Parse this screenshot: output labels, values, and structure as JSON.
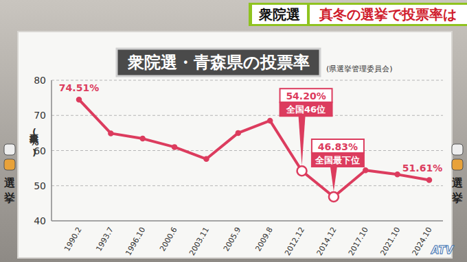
{
  "header": {
    "tag": "衆院選",
    "headline": "真冬の選挙で投票率は"
  },
  "side_labels": [
    "選",
    "挙"
  ],
  "logo": "ATV",
  "chart_data": {
    "type": "line",
    "title": "衆院選・青森県の投票率",
    "subtitle": "(県選挙管理委員会)",
    "y_label": "投票率(%)",
    "categories": [
      "1990.2",
      "1993.7",
      "1996.10",
      "2000.6",
      "2003.11",
      "2005.9",
      "2009.8",
      "2012.12",
      "2014.12",
      "2017.10",
      "2021.10",
      "2024.10"
    ],
    "values": [
      74.51,
      64.9,
      63.4,
      61.0,
      57.6,
      65.0,
      68.5,
      54.2,
      46.83,
      54.4,
      53.2,
      51.61
    ],
    "value_labels": [
      "74.51%",
      null,
      null,
      null,
      null,
      null,
      null,
      "54.20%",
      "46.83%",
      null,
      null,
      "51.61%"
    ],
    "annotations": [
      {
        "x": "2012.12",
        "text": "全国46位"
      },
      {
        "x": "2014.12",
        "text": "全国最下位"
      }
    ],
    "color": "#dc3c5e",
    "ylim": [
      40,
      80
    ],
    "yticks": [
      40,
      50,
      60,
      70,
      80
    ],
    "grid": true,
    "data_labels": true
  }
}
